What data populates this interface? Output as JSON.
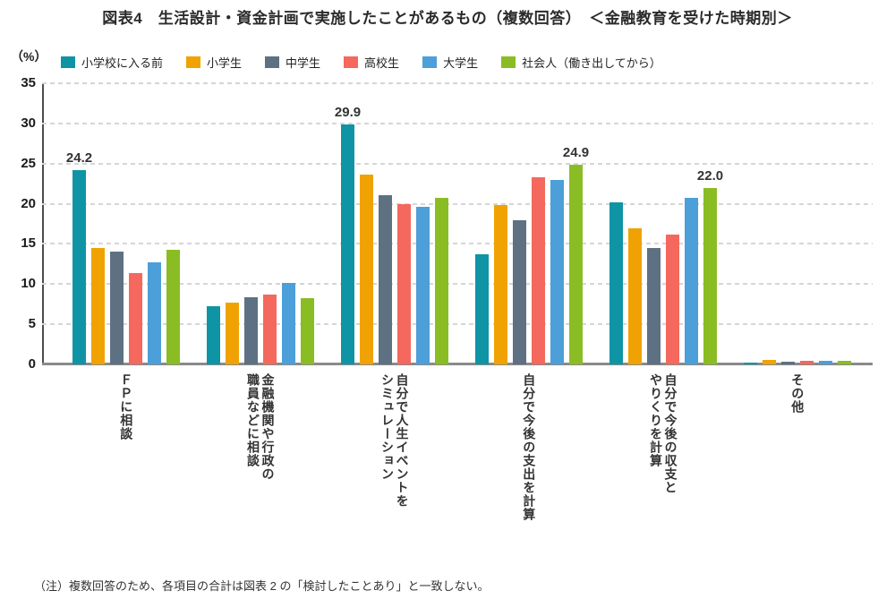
{
  "title": "図表4　生活設計・資金計画で実施したことがあるもの（複数回答）　＜金融教育を受けた時期別＞",
  "footnote": "（注）複数回答のため、各項目の合計は図表 2 の「検討したことあり」と一致しない。",
  "chart_data": {
    "type": "bar",
    "unit_label": "（%）",
    "ylim": [
      0,
      35
    ],
    "ytick_step": 5,
    "grid": "dashed-horizontal",
    "legend_position": "top-left",
    "categories": [
      [
        "ＦＰに相談"
      ],
      [
        "金融機関や行政の",
        "職員などに相談"
      ],
      [
        "自分で人生イベントを",
        "シミュレーション"
      ],
      [
        "自分で今後の支出を計算"
      ],
      [
        "自分で今後の収支と",
        "やりくりを計算"
      ],
      [
        "その他"
      ]
    ],
    "series": [
      {
        "name": "小学校に入る前",
        "color": "#0F94A6",
        "values": [
          24.2,
          7.3,
          29.9,
          13.7,
          20.2,
          0.2
        ]
      },
      {
        "name": "小学生",
        "color": "#F0A202",
        "values": [
          14.5,
          7.7,
          23.6,
          19.8,
          17.0,
          0.6
        ]
      },
      {
        "name": "中学生",
        "color": "#5E7182",
        "values": [
          14.1,
          8.4,
          21.1,
          18.0,
          14.5,
          0.3
        ]
      },
      {
        "name": "高校生",
        "color": "#F4685D",
        "values": [
          11.4,
          8.7,
          19.9,
          23.3,
          16.2,
          0.4
        ]
      },
      {
        "name": "大学生",
        "color": "#4C9FD8",
        "values": [
          12.7,
          10.1,
          19.6,
          23.0,
          20.7,
          0.4
        ]
      },
      {
        "name": "社会人（働き出してから）",
        "color": "#8ABD24",
        "values": [
          14.3,
          8.3,
          20.7,
          24.9,
          22.0,
          0.4
        ]
      }
    ],
    "data_labels": [
      {
        "category": 0,
        "series": 0,
        "text": "24.2"
      },
      {
        "category": 2,
        "series": 0,
        "text": "29.9"
      },
      {
        "category": 3,
        "series": 5,
        "text": "24.9"
      },
      {
        "category": 4,
        "series": 5,
        "text": "22.0"
      }
    ]
  }
}
